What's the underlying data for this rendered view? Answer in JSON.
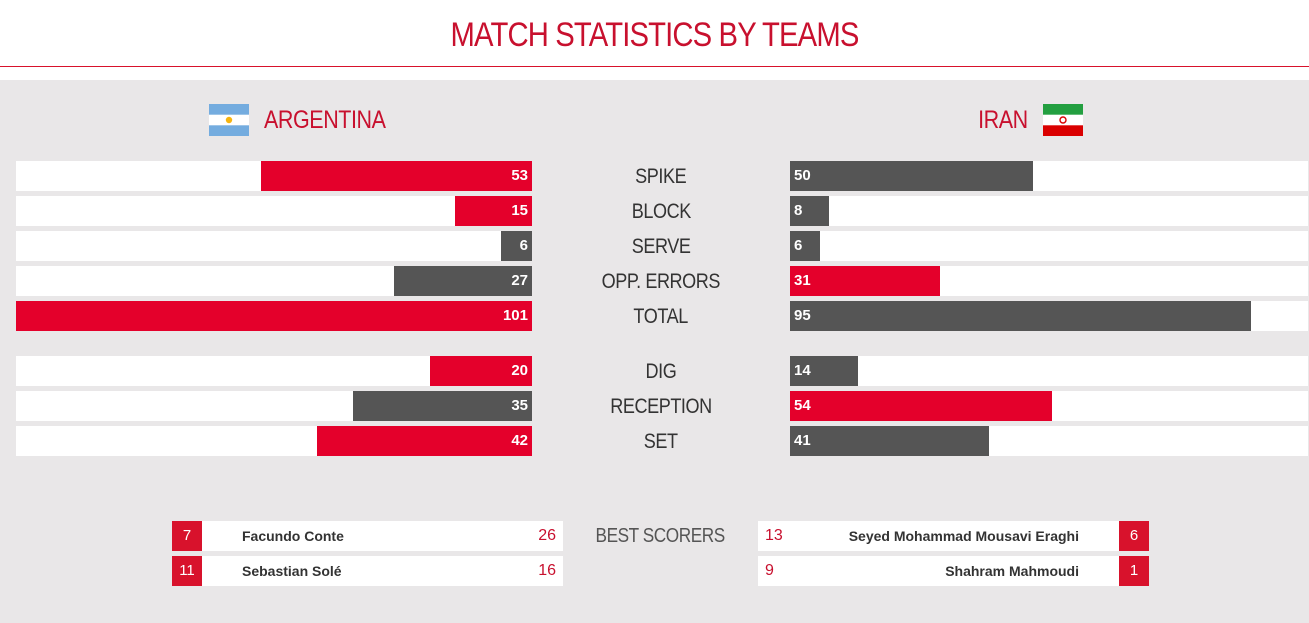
{
  "title": "MATCH STATISTICS BY TEAMS",
  "teams": {
    "left": {
      "name": "ARGENTINA",
      "flag_icon": "argentina-flag-icon"
    },
    "right": {
      "name": "IRAN",
      "flag_icon": "iran-flag-icon"
    }
  },
  "colors": {
    "accent": "#e4002b",
    "title_red": "#c8102e",
    "dark_bar": "#555555",
    "background": "#e9e7e8"
  },
  "max_value": 101,
  "stats": [
    {
      "label": "SPIKE",
      "left": 53,
      "right": 50,
      "left_color": "red",
      "right_color": "grey"
    },
    {
      "label": "BLOCK",
      "left": 15,
      "right": 8,
      "left_color": "red",
      "right_color": "grey"
    },
    {
      "label": "SERVE",
      "left": 6,
      "right": 6,
      "left_color": "grey",
      "right_color": "grey"
    },
    {
      "label": "OPP. ERRORS",
      "left": 27,
      "right": 31,
      "left_color": "grey",
      "right_color": "red"
    },
    {
      "label": "TOTAL",
      "left": 101,
      "right": 95,
      "left_color": "red",
      "right_color": "grey"
    },
    {
      "label": "DIG",
      "left": 20,
      "right": 14,
      "left_color": "red",
      "right_color": "grey"
    },
    {
      "label": "RECEPTION",
      "left": 35,
      "right": 54,
      "left_color": "grey",
      "right_color": "red"
    },
    {
      "label": "SET",
      "left": 42,
      "right": 41,
      "left_color": "red",
      "right_color": "grey"
    }
  ],
  "best_scorers": {
    "label": "BEST SCORERS",
    "left": [
      {
        "number": "7",
        "name": "Facundo Conte",
        "points": "26"
      },
      {
        "number": "11",
        "name": "Sebastian Solé",
        "points": "16"
      }
    ],
    "right": [
      {
        "number": "6",
        "name": "Seyed Mohammad Mousavi Eraghi",
        "points": "13"
      },
      {
        "number": "1",
        "name": "Shahram Mahmoudi",
        "points": "9"
      }
    ]
  }
}
